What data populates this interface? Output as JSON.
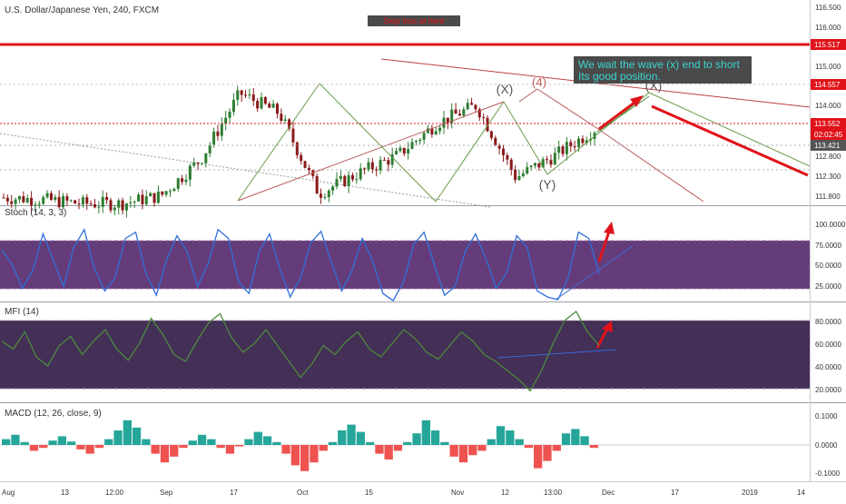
{
  "header": {
    "symbol_title": "U.S. Dollar/Japanese Yen, 240, FXCM",
    "note_box": "Stop loss at here"
  },
  "annotation": {
    "line1": "We wait the wave (x) end to short",
    "line2": "Its good position."
  },
  "wave_labels": {
    "x_left": "(X)",
    "four": "(4)",
    "y": "(Y)",
    "x_right": "(X)"
  },
  "colors": {
    "background": "#ffffff",
    "candle_up": "#2e7d32",
    "candle_down": "#8b1a1a",
    "red_level": "#e0131a",
    "stoch_line": "#2e6fd8",
    "stoch_band": "#4a1a63",
    "mfi_line": "#4b8b3b",
    "mfi_band": "#2a1240",
    "macd_pos": "#26a69a",
    "macd_neg": "#ef5350",
    "annotation_bg": "#4a4a4a",
    "annotation_text": "#3ad6d0"
  },
  "price_axis": {
    "ticks": [
      "116.500",
      "116.000",
      "115.500",
      "115.000",
      "114.500",
      "114.000",
      "113.500",
      "112.800",
      "112.300",
      "111.800"
    ],
    "badges": [
      {
        "label": "115.517",
        "color": "#e0131a"
      },
      {
        "label": "114.557",
        "color": "#e0131a"
      },
      {
        "label": "113.552",
        "color": "#e0131a"
      },
      {
        "label": "02:02:45",
        "color": "#e0131a"
      },
      {
        "label": "113.421",
        "color": "#555555"
      }
    ]
  },
  "time_axis": {
    "labels": [
      "Aug",
      "13",
      "12:00",
      "Sep",
      "17",
      "Oct",
      "15",
      "Nov",
      "12",
      "13:00",
      "Dec",
      "17",
      "2019",
      "14"
    ]
  },
  "indicators": {
    "stoch": {
      "title": "Stoch (14, 3, 3)",
      "ticks": [
        "100.0000",
        "75.0000",
        "50.0000",
        "25.0000"
      ]
    },
    "mfi": {
      "title": "MFI (14)",
      "ticks": [
        "80.0000",
        "60.0000",
        "40.0000",
        "20.0000"
      ]
    },
    "macd": {
      "title": "MACD (12, 26, close, 9)",
      "ticks": [
        "0.1000",
        "0.0000",
        "-0.1000"
      ]
    }
  },
  "chart_data": [
    {
      "type": "candlestick",
      "title": "U.S. Dollar/Japanese Yen, 240, FXCM",
      "ylim": [
        111.7,
        116.6
      ],
      "levels": [
        {
          "name": "stop loss",
          "value": 115.517
        },
        {
          "name": "resistance",
          "value": 114.557
        },
        {
          "name": "last price",
          "value": 113.552
        },
        {
          "name": "level",
          "value": 113.421
        }
      ],
      "close_path": [
        {
          "x": "Aug",
          "y": 111.85
        },
        {
          "x": "13",
          "y": 111.8
        },
        {
          "x": "12:00",
          "y": 111.7
        },
        {
          "x": "Sep",
          "y": 111.7
        },
        {
          "x": "17",
          "y": 111.9
        },
        {
          "x": "mid-Sep",
          "y": 112.8
        },
        {
          "x": "early Oct",
          "y": 114.45
        },
        {
          "x": "Oct",
          "y": 113.95
        },
        {
          "x": "15",
          "y": 111.95
        },
        {
          "x": "late Oct",
          "y": 112.45
        },
        {
          "x": "Nov",
          "y": 112.9
        },
        {
          "x": "Nov",
          "y": 113.7
        },
        {
          "x": "12",
          "y": 114.15
        },
        {
          "x": "13:00",
          "y": 112.35
        },
        {
          "x": "late Nov",
          "y": 112.9
        },
        {
          "x": "end Nov",
          "y": 113.55
        }
      ]
    },
    {
      "type": "line",
      "title": "Stoch (14, 3, 3)",
      "ylim": [
        10,
        108
      ],
      "bands": [
        20,
        80
      ],
      "values": [
        72,
        55,
        28,
        48,
        90,
        60,
        30,
        75,
        95,
        50,
        25,
        40,
        85,
        92,
        45,
        20,
        60,
        88,
        70,
        30,
        55,
        95,
        85,
        35,
        22,
        70,
        90,
        50,
        18,
        40,
        80,
        93,
        58,
        25,
        48,
        85,
        60,
        22,
        14,
        35,
        78,
        92,
        55,
        20,
        30,
        70,
        90,
        62,
        28,
        45,
        88,
        75,
        25,
        18,
        15,
        40,
        92,
        85,
        45
      ]
    },
    {
      "type": "line",
      "title": "MFI (14)",
      "ylim": [
        10,
        90
      ],
      "bands": [
        20,
        80
      ],
      "values": [
        62,
        55,
        70,
        48,
        40,
        58,
        66,
        50,
        62,
        72,
        55,
        45,
        60,
        82,
        68,
        50,
        44,
        62,
        78,
        86,
        65,
        52,
        60,
        72,
        58,
        44,
        30,
        42,
        58,
        50,
        62,
        70,
        55,
        48,
        60,
        72,
        64,
        52,
        46,
        58,
        70,
        62,
        50,
        44,
        36,
        28,
        18,
        36,
        60,
        80,
        88,
        70,
        58
      ]
    },
    {
      "type": "bar",
      "title": "MACD (12, 26, close, 9)",
      "ylim": [
        -0.13,
        0.13
      ],
      "values": [
        0.02,
        0.035,
        0.01,
        -0.02,
        -0.01,
        0.015,
        0.03,
        0.012,
        -0.015,
        -0.03,
        -0.01,
        0.02,
        0.05,
        0.085,
        0.06,
        0.02,
        -0.03,
        -0.06,
        -0.04,
        -0.01,
        0.015,
        0.035,
        0.02,
        -0.01,
        -0.03,
        -0.005,
        0.02,
        0.045,
        0.03,
        0.01,
        -0.03,
        -0.07,
        -0.09,
        -0.06,
        -0.02,
        0.01,
        0.05,
        0.07,
        0.045,
        0.01,
        -0.03,
        -0.05,
        -0.02,
        0.01,
        0.04,
        0.085,
        0.05,
        0.01,
        -0.04,
        -0.06,
        -0.035,
        -0.02,
        0.02,
        0.065,
        0.05,
        0.02,
        -0.01,
        -0.08,
        -0.055,
        -0.02,
        0.04,
        0.055,
        0.03,
        -0.01
      ]
    }
  ]
}
